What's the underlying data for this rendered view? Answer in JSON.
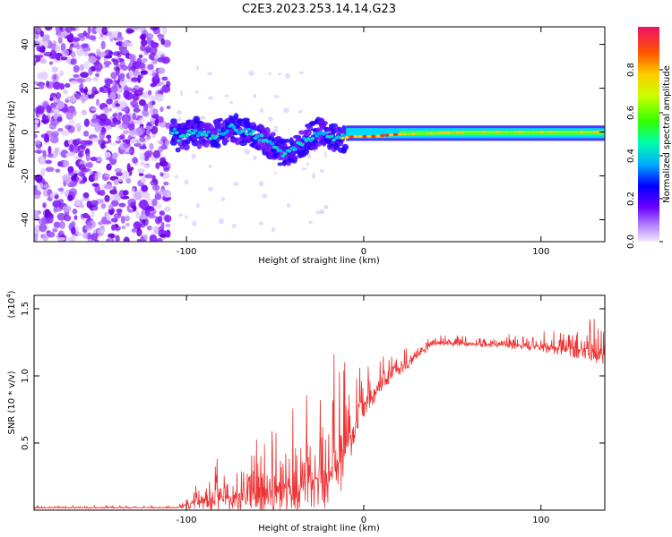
{
  "title": "C2E3.2023.253.14.14.G23",
  "chart_data": [
    {
      "type": "heatmap",
      "xlabel": "Height of straight line (km)",
      "ylabel": "Frequency (Hz)",
      "xlim": [
        -186,
        136
      ],
      "ylim": [
        -50,
        48
      ],
      "xticks": [
        -100,
        0,
        100
      ],
      "yticks": [
        -40,
        -20,
        0,
        20,
        40
      ],
      "grid": false,
      "colorbar": {
        "label": "Normalized spectral amplitude",
        "range": [
          0,
          1
        ],
        "ticks": [
          "0.0",
          "0.2",
          "0.4",
          "0.6",
          "0.8"
        ]
      },
      "signal_trace": [
        {
          "x": -105,
          "y": -3
        },
        {
          "x": -95,
          "y": 0
        },
        {
          "x": -85,
          "y": -2
        },
        {
          "x": -75,
          "y": 2
        },
        {
          "x": -65,
          "y": 0
        },
        {
          "x": -55,
          "y": -4
        },
        {
          "x": -45,
          "y": -10
        },
        {
          "x": -35,
          "y": -5
        },
        {
          "x": -25,
          "y": 0
        },
        {
          "x": -15,
          "y": -3
        },
        {
          "x": -5,
          "y": -2
        },
        {
          "x": 5,
          "y": -2
        },
        {
          "x": 20,
          "y": -1
        },
        {
          "x": 60,
          "y": 0
        },
        {
          "x": 100,
          "y": 0
        },
        {
          "x": 135,
          "y": 0
        }
      ]
    },
    {
      "type": "line",
      "xlabel": "Height of straight line (km)",
      "ylabel": "SNR (10 * v/v)",
      "y_multiplier_label": "(x10",
      "y_multiplier_exp": "4",
      "y_multiplier_close": ")",
      "xlim": [
        -186,
        136
      ],
      "ylim": [
        0,
        1.6
      ],
      "xticks": [
        -100,
        0,
        100
      ],
      "yticks": [
        "0.5",
        "1.0",
        "1.5"
      ],
      "grid": false,
      "series": [
        {
          "color": "#ee3333",
          "envelope": [
            {
              "x": -186,
              "base": 0.02,
              "amp": 0.01
            },
            {
              "x": -105,
              "base": 0.02,
              "amp": 0.01
            },
            {
              "x": -95,
              "base": 0.08,
              "amp": 0.12
            },
            {
              "x": -80,
              "base": 0.12,
              "amp": 0.22
            },
            {
              "x": -60,
              "base": 0.15,
              "amp": 0.3
            },
            {
              "x": -40,
              "base": 0.22,
              "amp": 0.4
            },
            {
              "x": -25,
              "base": 0.3,
              "amp": 0.5
            },
            {
              "x": -15,
              "base": 0.4,
              "amp": 0.6
            },
            {
              "x": -8,
              "base": 0.6,
              "amp": 0.4
            },
            {
              "x": 0,
              "base": 0.8,
              "amp": 0.2
            },
            {
              "x": 15,
              "base": 1.02,
              "amp": 0.12
            },
            {
              "x": 40,
              "base": 1.25,
              "amp": 0.04
            },
            {
              "x": 80,
              "base": 1.24,
              "amp": 0.05
            },
            {
              "x": 115,
              "base": 1.22,
              "amp": 0.12
            },
            {
              "x": 136,
              "base": 1.2,
              "amp": 0.2
            }
          ]
        }
      ]
    }
  ]
}
